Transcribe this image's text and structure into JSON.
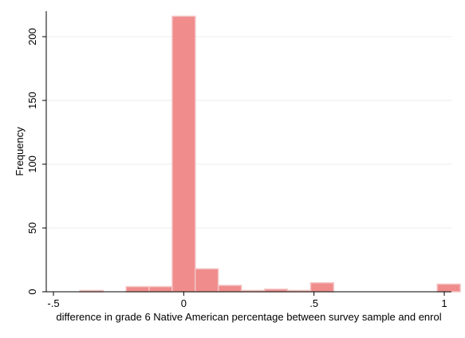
{
  "chart_data": {
    "type": "bar",
    "title": "",
    "xlabel": "difference in grade 6 Native American percentage between survey sample and enrol",
    "ylabel": "Frequency",
    "xlim": [
      -0.5,
      1.0
    ],
    "ylim": [
      0,
      220
    ],
    "xticks": [
      {
        "value": -0.5,
        "label": "-.5"
      },
      {
        "value": 0,
        "label": "0"
      },
      {
        "value": 0.5,
        "label": ".5"
      },
      {
        "value": 1,
        "label": "1"
      }
    ],
    "yticks": [
      {
        "value": 0,
        "label": "0"
      },
      {
        "value": 50,
        "label": "50"
      },
      {
        "value": 100,
        "label": "100"
      },
      {
        "value": 150,
        "label": "150"
      },
      {
        "value": 200,
        "label": "200"
      }
    ],
    "grid": true,
    "bin_width": 0.0885,
    "bins": [
      {
        "x_start": -0.398,
        "count": 1
      },
      {
        "x_start": -0.221,
        "count": 4
      },
      {
        "x_start": -0.133,
        "count": 4
      },
      {
        "x_start": -0.044,
        "count": 216
      },
      {
        "x_start": 0.044,
        "count": 18
      },
      {
        "x_start": 0.133,
        "count": 5
      },
      {
        "x_start": 0.221,
        "count": 1
      },
      {
        "x_start": 0.31,
        "count": 2
      },
      {
        "x_start": 0.398,
        "count": 1
      },
      {
        "x_start": 0.487,
        "count": 7
      },
      {
        "x_start": 0.973,
        "count": 6
      }
    ],
    "colors": {
      "bar_fill": "#f08c8c",
      "bar_stroke": "#f4c4c4",
      "grid": "#ececec",
      "axis": "#000000"
    }
  }
}
